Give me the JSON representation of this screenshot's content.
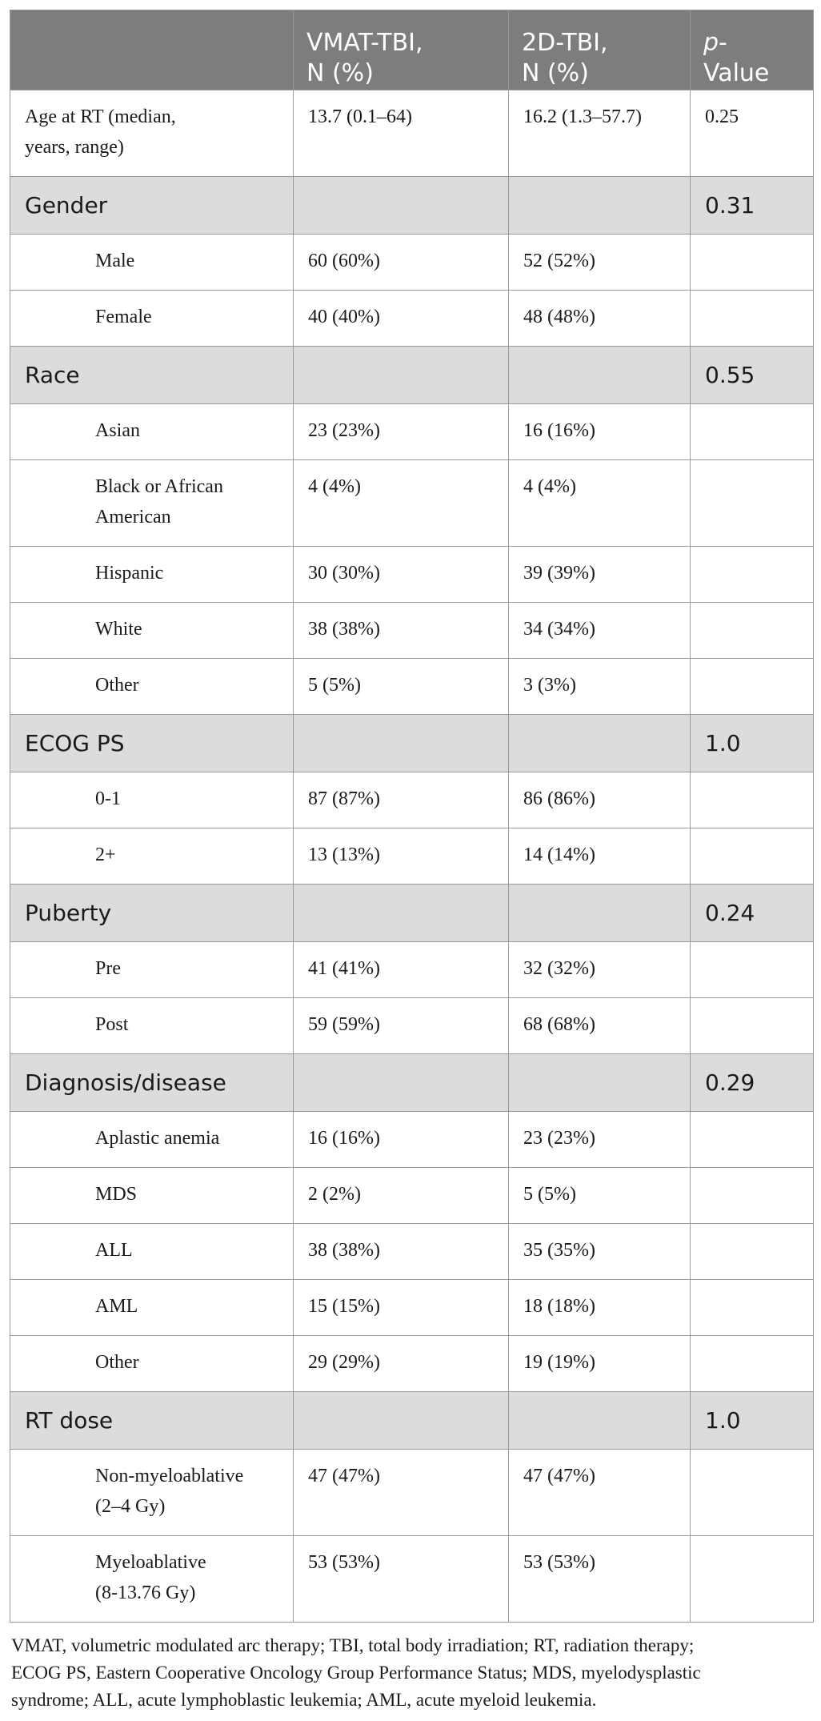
{
  "headers": {
    "c1": "",
    "c2_line1": "VMAT-TBI,",
    "c2_line2": "N (%)",
    "c3_line1": "2D-TBI,",
    "c3_line2": "N (%)",
    "c4_italic": "p",
    "c4_rest1": "-",
    "c4_line2": "Value"
  },
  "age": {
    "label_line1": "Age at RT (median,",
    "label_line2": "years, range)",
    "vmat": "13.7 (0.1–64)",
    "twod": "16.2 (1.3–57.7)",
    "p": "0.25"
  },
  "gender": {
    "label": "Gender",
    "p": "0.31",
    "rows": [
      {
        "label": "Male",
        "vmat": "60 (60%)",
        "twod": "52 (52%)"
      },
      {
        "label": "Female",
        "vmat": "40 (40%)",
        "twod": "48 (48%)"
      }
    ]
  },
  "race": {
    "label": "Race",
    "p": "0.55",
    "rows": [
      {
        "label": "Asian",
        "vmat": "23 (23%)",
        "twod": "16 (16%)"
      },
      {
        "label_line1": "Black or African",
        "label_line2": "American",
        "vmat": "4 (4%)",
        "twod": "4 (4%)"
      },
      {
        "label": "Hispanic",
        "vmat": "30 (30%)",
        "twod": "39 (39%)"
      },
      {
        "label": "White",
        "vmat": "38 (38%)",
        "twod": "34 (34%)"
      },
      {
        "label": "Other",
        "vmat": "5 (5%)",
        "twod": "3 (3%)"
      }
    ]
  },
  "ecog": {
    "label": "ECOG PS",
    "p": "1.0",
    "rows": [
      {
        "label": "0-1",
        "vmat": "87 (87%)",
        "twod": "86 (86%)"
      },
      {
        "label": "2+",
        "vmat": "13 (13%)",
        "twod": "14 (14%)"
      }
    ]
  },
  "puberty": {
    "label": "Puberty",
    "p": "0.24",
    "rows": [
      {
        "label": "Pre",
        "vmat": "41 (41%)",
        "twod": "32 (32%)"
      },
      {
        "label": "Post",
        "vmat": "59 (59%)",
        "twod": "68 (68%)"
      }
    ]
  },
  "diagnosis": {
    "label": "Diagnosis/disease",
    "p": "0.29",
    "rows": [
      {
        "label": "Aplastic anemia",
        "vmat": "16 (16%)",
        "twod": "23 (23%)"
      },
      {
        "label": "MDS",
        "vmat": "2 (2%)",
        "twod": "5 (5%)"
      },
      {
        "label": "ALL",
        "vmat": "38 (38%)",
        "twod": "35 (35%)"
      },
      {
        "label": "AML",
        "vmat": "15 (15%)",
        "twod": "18 (18%)"
      },
      {
        "label": "Other",
        "vmat": "29 (29%)",
        "twod": "19 (19%)"
      }
    ]
  },
  "rtdose": {
    "label": "RT dose",
    "p": "1.0",
    "rows": [
      {
        "label_line1": "Non-myeloablative",
        "label_line2": "(2–4 Gy)",
        "vmat": "47 (47%)",
        "twod": "47 (47%)"
      },
      {
        "label_line1": "Myeloablative",
        "label_line2": "(8-13.76 Gy)",
        "vmat": "53 (53%)",
        "twod": "53 (53%)"
      }
    ]
  },
  "footnote": {
    "line1": "VMAT, volumetric modulated arc therapy; TBI, total body irradiation; RT, radiation therapy;",
    "line2": "ECOG PS, Eastern Cooperative Oncology Group Performance Status; MDS, myelodysplastic",
    "line3": "syndrome; ALL, acute lymphoblastic leukemia; AML, acute myeloid leukemia."
  }
}
